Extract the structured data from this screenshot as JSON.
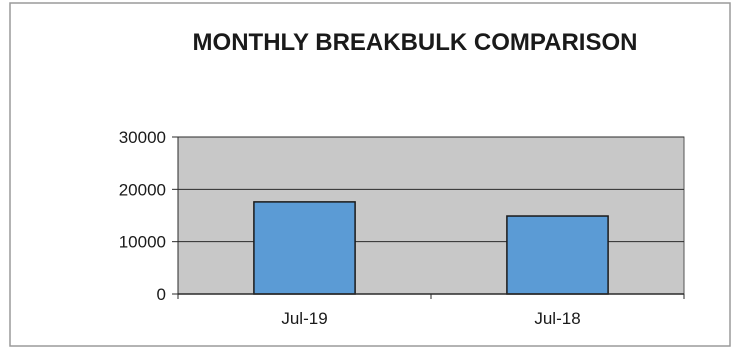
{
  "chart_data": {
    "type": "bar",
    "title": "MONTHLY BREAKBULK COMPARISON",
    "xlabel": "",
    "ylabel": "",
    "categories": [
      "Jul-19",
      "Jul-18"
    ],
    "values": [
      17600,
      14900
    ],
    "ylim": [
      0,
      30000
    ],
    "yticks": [
      "0",
      "10000",
      "20000",
      "30000"
    ],
    "grid": true,
    "legend": "none",
    "colors": {
      "bar_fill": "#5b9bd5",
      "bar_stroke": "#1a1a1a",
      "plot_background": "#c8c8c8",
      "gridline": "#2a2a2a",
      "text": "#1a1a1a"
    }
  }
}
